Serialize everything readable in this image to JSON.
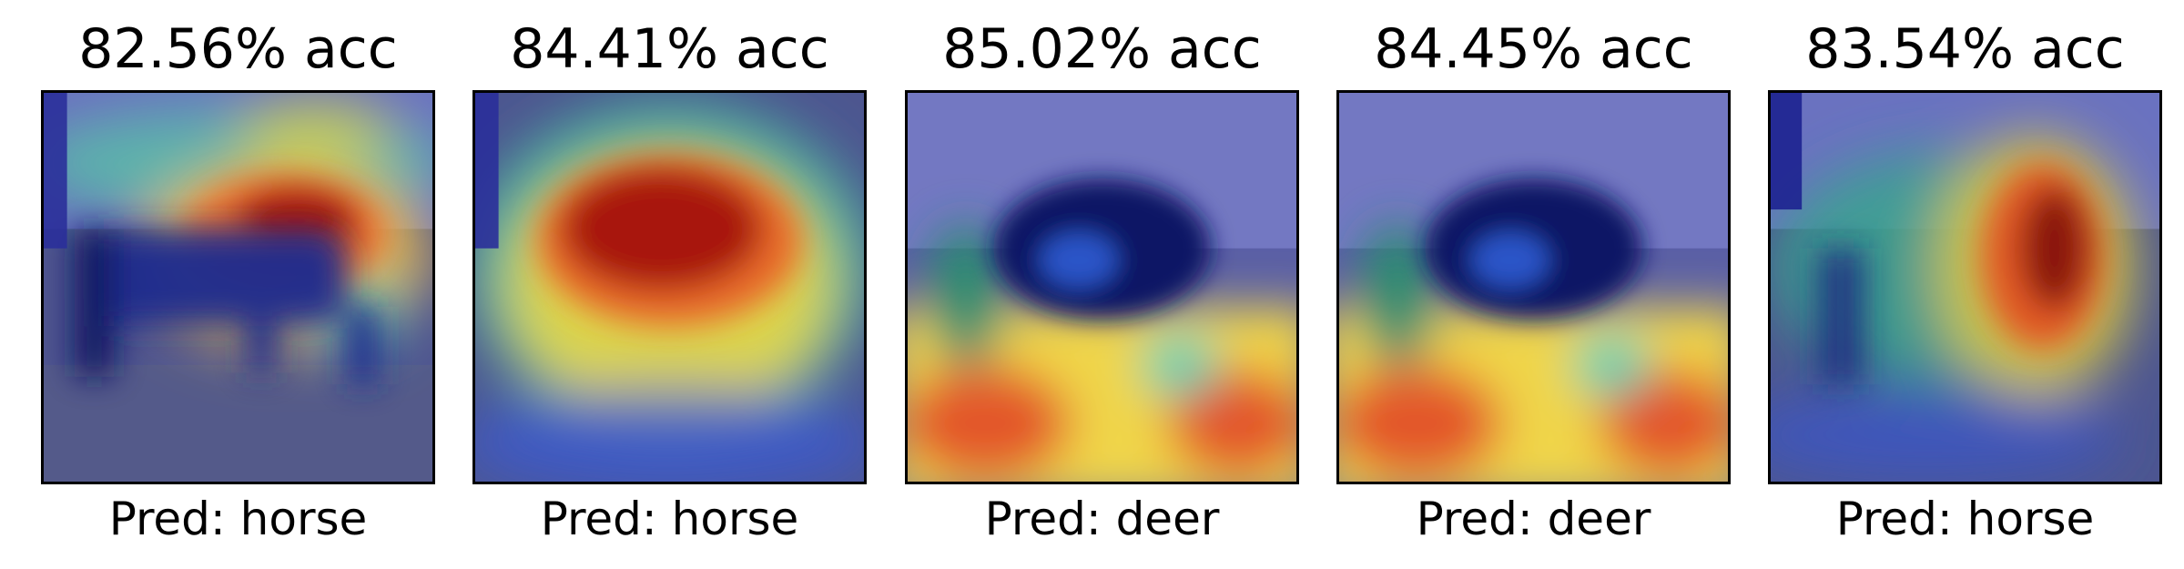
{
  "panels": [
    {
      "title": "82.56% acc",
      "caption": "Pred: horse"
    },
    {
      "title": "84.41% acc",
      "caption": "Pred: horse"
    },
    {
      "title": "85.02% acc",
      "caption": "Pred: deer"
    },
    {
      "title": "84.45% acc",
      "caption": "Pred: deer"
    },
    {
      "title": "83.54% acc",
      "caption": "Pred: horse"
    }
  ],
  "colors": {
    "background": "#ffffff",
    "frame": "#000000",
    "heat_low": "#2b2f86",
    "heat_mid": "#3fb7a8",
    "heat_warm": "#f2d23c",
    "heat_high": "#b01a0f"
  }
}
